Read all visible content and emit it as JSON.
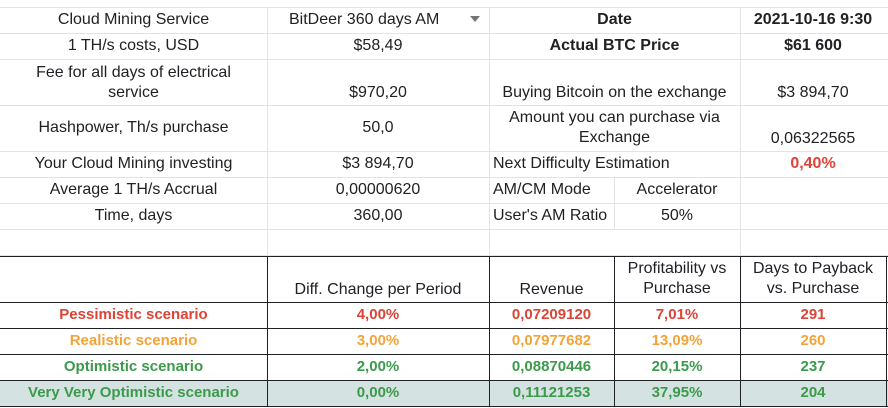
{
  "top": {
    "rows": [
      {
        "label": "Cloud Mining Service",
        "value": "BitDeer 360 days AM",
        "right_label": "Date",
        "right_value": "2021-10-16 9:30"
      },
      {
        "label": "1 TH/s costs, USD",
        "value": "$58,49",
        "right_label": "Actual BTC Price",
        "right_value": "$61 600"
      },
      {
        "label": "Fee for all days of electrical\nservice",
        "value": "$970,20",
        "right_label": "Buying Bitcoin on the exchange",
        "right_value": "$3 894,70"
      },
      {
        "label": "Hashpower, Th/s purchase",
        "value": "50,0",
        "right_label": "Amount you can purchase via\nExchange",
        "right_value": "0,06322565"
      },
      {
        "label": "Your Cloud Mining investing",
        "value": "$3 894,70",
        "right_label": "Next Difficulty Estimation",
        "right_value": "0,40%"
      },
      {
        "label": "Average 1 TH/s Accrual",
        "value": "0,00000620",
        "right_label": "AM/CM Mode",
        "right_mid": "Accelerator"
      },
      {
        "label": "Time, days",
        "value": "360,00",
        "right_label": "User's AM Ratio",
        "right_mid": "50%"
      }
    ]
  },
  "scenarios": {
    "headers": [
      "Diff. Change per Period",
      "Revenue",
      "Profitability vs\nPurchase",
      "Days to Payback\nvs. Purchase"
    ],
    "rows": [
      {
        "name": "Pessimistic scenario",
        "diff": "4,00%",
        "revenue": "0,07209120",
        "profit": "7,01%",
        "days": "291",
        "color": "#db4437"
      },
      {
        "name": "Realistic scenario",
        "diff": "3,00%",
        "revenue": "0,07977682",
        "profit": "13,09%",
        "days": "260",
        "color": "#f2a33a"
      },
      {
        "name": "Optimistic scenario",
        "diff": "2,00%",
        "revenue": "0,08870446",
        "profit": "20,15%",
        "days": "237",
        "color": "#3c9a4b"
      },
      {
        "name": "Very Very Optimistic scenario",
        "diff": "0,00%",
        "revenue": "0,11121253",
        "profit": "37,95%",
        "days": "204",
        "color": "#3c9a4b"
      }
    ]
  }
}
